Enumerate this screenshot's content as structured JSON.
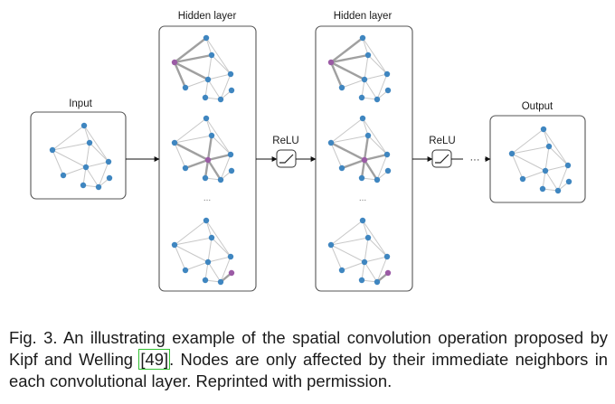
{
  "panels": {
    "input": {
      "label": "Input"
    },
    "hidden1": {
      "label": "Hidden layer",
      "ellipsis": "..."
    },
    "hidden2": {
      "label": "Hidden layer",
      "ellipsis": "..."
    },
    "output": {
      "label": "Output"
    }
  },
  "activations": [
    {
      "label": "ReLU"
    },
    {
      "label": "ReLU"
    }
  ],
  "trailing_ellipsis": "···",
  "caption": {
    "before": "Fig. 3.  An illustrating example of the spatial convolution operation proposed by Kipf and Welling ",
    "citation": "[49]",
    "after": ". Nodes are only affected by their immediate neighbors in each convolutional layer. Reprinted with permission."
  },
  "colors": {
    "node": "#3f86c0",
    "highlight_node": "#9b5ba5",
    "edge": "#c8c8c8",
    "highlight_edge": "#a0a0a0",
    "panel_border": "#555555",
    "citation_box": "#34c134"
  }
}
